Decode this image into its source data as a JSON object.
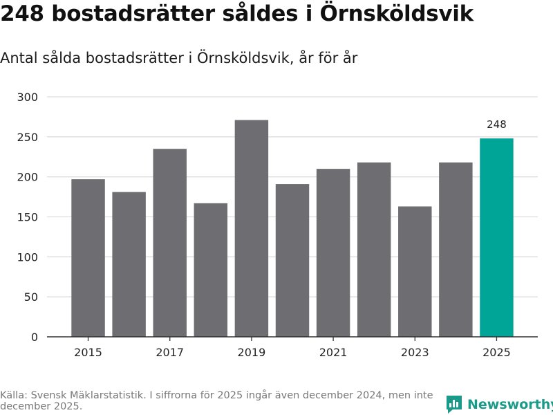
{
  "header": {
    "title": "248 bostadsrätter såldes i Örnsköldsvik",
    "subtitle": "Antal sålda bostadsrätter i Örnsköldsvik, år för år"
  },
  "footer": {
    "source": "Källa: Svensk Mäklarstatistik. I siffrorna för 2025 ingår även december 2024, men inte december 2025.",
    "logo_text": "Newsworthy"
  },
  "colors": {
    "bar": "#6e6d72",
    "highlight": "#00a597",
    "grid": "#dddddd",
    "axis": "#333333",
    "brand": "#1a9a88"
  },
  "chart_data": {
    "type": "bar",
    "title": "Antal sålda bostadsrätter i Örnsköldsvik, år för år",
    "xlabel": "",
    "ylabel": "",
    "categories": [
      "2015",
      "2016",
      "2017",
      "2018",
      "2019",
      "2020",
      "2021",
      "2022",
      "2023",
      "2024",
      "2025"
    ],
    "values": [
      197,
      181,
      235,
      167,
      271,
      191,
      210,
      218,
      163,
      218,
      248
    ],
    "x_tick_labels": [
      "2015",
      "2017",
      "2019",
      "2021",
      "2023",
      "2025"
    ],
    "y_ticks": [
      0,
      50,
      100,
      150,
      200,
      250,
      300
    ],
    "ylim": [
      0,
      300
    ],
    "highlight_category": "2025",
    "data_labels": [
      {
        "category": "2025",
        "text": "248"
      }
    ],
    "grid": true
  }
}
